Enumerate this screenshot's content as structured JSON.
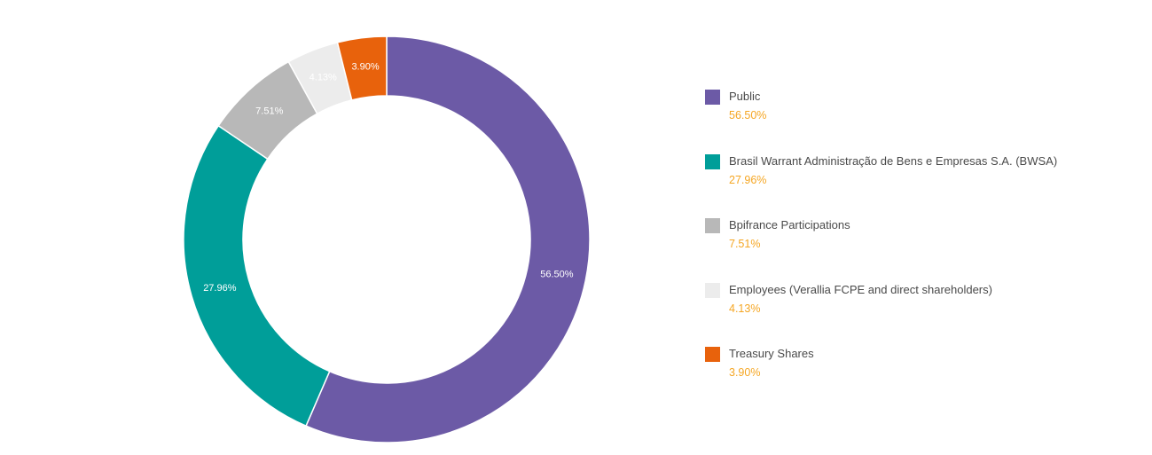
{
  "chart_data": {
    "type": "pie",
    "style": "donut",
    "slices": [
      {
        "name": "Public",
        "value": 56.5,
        "label": "56.50%",
        "color": "#6c5aa6",
        "label_color": "#ffffff"
      },
      {
        "name": "Brasil Warrant Administração de Bens e Empresas S.A. (BWSA)",
        "value": 27.96,
        "label": "27.96%",
        "color": "#009e99",
        "label_color": "#ffffff"
      },
      {
        "name": "Bpifrance Participations",
        "value": 7.51,
        "label": "7.51%",
        "color": "#b8b8b8",
        "label_color": "#ffffff"
      },
      {
        "name": "Employees (Verallia FCPE and direct shareholders)",
        "value": 4.13,
        "label": "4.13%",
        "color": "#ececec",
        "label_color": "#ffffff"
      },
      {
        "name": "Treasury Shares",
        "value": 3.9,
        "label": "3.90%",
        "color": "#e8620c",
        "label_color": "#ffffff"
      }
    ],
    "legend_position": "right",
    "legend_value_color": "#f5a623"
  }
}
